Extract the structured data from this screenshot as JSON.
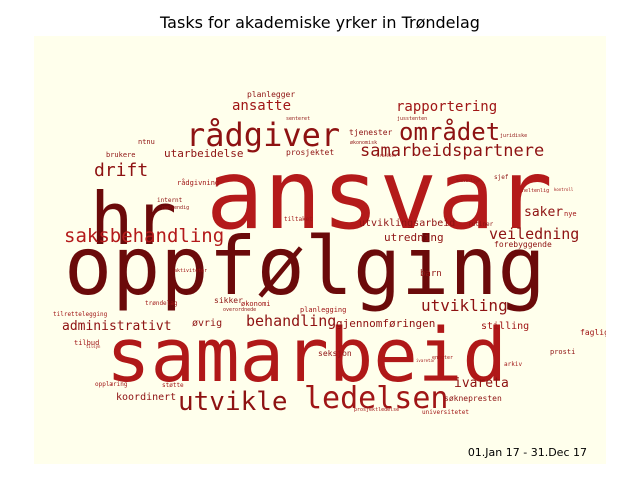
{
  "title": "Tasks for akademiske yrker in Trøndelag",
  "date_range": "01.Jan 17 - 31.Dec 17",
  "colors": {
    "background": "#FFFFEC",
    "word_dark": "#6B0A0A",
    "word_mid": "#9E1515",
    "word_bright": "#C41E1E"
  },
  "words": [
    {
      "text": "ansvar",
      "color": "#B41A1A"
    },
    {
      "text": "oppfølging",
      "color": "#6B0A0A"
    },
    {
      "text": "samarbeid",
      "color": "#B01818"
    },
    {
      "text": "hr",
      "color": "#6B0A0A"
    },
    {
      "text": "rådgiver",
      "color": "#8E1212"
    },
    {
      "text": "området",
      "color": "#8E1212"
    },
    {
      "text": "ledelsen",
      "color": "#A01616"
    },
    {
      "text": "utvikle",
      "color": "#8E1212"
    },
    {
      "text": "saksbehandling",
      "color": "#B41A1A"
    },
    {
      "text": "samarbeidspartnere",
      "color": "#8E1212"
    },
    {
      "text": "drift",
      "color": "#8E1212"
    },
    {
      "text": "ansatte",
      "color": "#A01616"
    },
    {
      "text": "rapportering",
      "color": "#A01616"
    },
    {
      "text": "behandling",
      "color": "#8E1212"
    },
    {
      "text": "utvikling",
      "color": "#8E1212"
    },
    {
      "text": "veiledning",
      "color": "#8E1212"
    },
    {
      "text": "administrativt",
      "color": "#8E1212"
    },
    {
      "text": "ivareta",
      "color": "#8E1212"
    },
    {
      "text": "saker",
      "color": "#8E1212"
    },
    {
      "text": "utarbeidelse",
      "color": "#8E1212"
    },
    {
      "text": "utviklingsarbeid",
      "color": "#8E1212"
    },
    {
      "text": "utredning",
      "color": "#8E1212"
    },
    {
      "text": "gjennomføringen",
      "color": "#8E1212"
    },
    {
      "text": "stilling",
      "color": "#A01616"
    },
    {
      "text": "koordinert",
      "color": "#8E1212"
    },
    {
      "text": "søknepresten",
      "color": "#8E1212"
    },
    {
      "text": "barn",
      "color": "#8E1212"
    },
    {
      "text": "øvrig",
      "color": "#8E1212"
    },
    {
      "text": "forebyggende",
      "color": "#8E1212"
    },
    {
      "text": "faglig",
      "color": "#A01616"
    },
    {
      "text": "planlegger",
      "color": "#8E1212"
    },
    {
      "text": "tjenester",
      "color": "#8E1212"
    },
    {
      "text": "prosjektet",
      "color": "#8E1212"
    },
    {
      "text": "nye",
      "color": "#A01616"
    },
    {
      "text": "prosti",
      "color": "#8E1212"
    },
    {
      "text": "seksjon",
      "color": "#8E1212"
    },
    {
      "text": "økonomi",
      "color": "#A01616"
    },
    {
      "text": "sikker",
      "color": "#8E1212"
    },
    {
      "text": "planlegging",
      "color": "#A01616"
    },
    {
      "text": "brukere",
      "color": "#8E1212"
    },
    {
      "text": "ntnu",
      "color": "#8E1212"
    },
    {
      "text": "rådgivning",
      "color": "#A01616"
    },
    {
      "text": "tilbud",
      "color": "#A01616"
    },
    {
      "text": "opplæring",
      "color": "#A01616"
    },
    {
      "text": "støtte",
      "color": "#A01616"
    },
    {
      "text": "internt",
      "color": "#8E1212"
    },
    {
      "text": "nødvendig",
      "color": "#8E1212"
    },
    {
      "text": "tiltaket",
      "color": "#A01616"
    },
    {
      "text": "trøndelag",
      "color": "#A01616"
    },
    {
      "text": "tilrettelegging",
      "color": "#A01616"
    },
    {
      "text": "arkiv",
      "color": "#A01616"
    },
    {
      "text": "heltenlig",
      "color": "#A01616"
    },
    {
      "text": "rutiner",
      "color": "#8E1212"
    },
    {
      "text": "sjef",
      "color": "#8E1212"
    },
    {
      "text": "juridiske",
      "color": "#8E1212"
    },
    {
      "text": "universitetet",
      "color": "#A01616"
    },
    {
      "text": "prosjektledelse",
      "color": "#A01616"
    },
    {
      "text": "aktiviteter",
      "color": "#A01616"
    },
    {
      "text": "overordnede",
      "color": "#8E1212"
    },
    {
      "text": "jusstenten",
      "color": "#8E1212"
    },
    {
      "text": "senteret",
      "color": "#8E1212"
    },
    {
      "text": "økonomisk",
      "color": "#8E1212"
    },
    {
      "text": "arbeidet",
      "color": "#A01616"
    },
    {
      "text": "ansvarlige",
      "color": "#8E1212"
    },
    {
      "text": "enheter",
      "color": "#A01616"
    },
    {
      "text": "ivaretar",
      "color": "#A01616"
    },
    {
      "text": "tilsyn",
      "color": "#A01616"
    },
    {
      "text": "kontroll",
      "color": "#A01616"
    }
  ]
}
